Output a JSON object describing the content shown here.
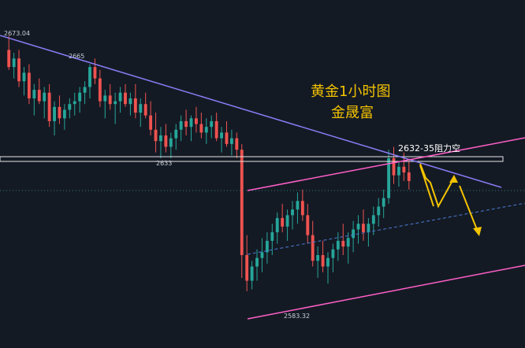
{
  "chart_data": {
    "type": "candlestick",
    "title": "黄金1小时图",
    "subtitle": "金晟富",
    "colors": {
      "background": "#141a24",
      "up": "#26a69a",
      "down": "#ef5350",
      "downtrend_line": "#8b7cf6",
      "channel": "#ff5fc8",
      "resistance_box": "#e6e6e6",
      "projection": "#f5c400",
      "grid_dots": "#2f7f7a"
    },
    "price_labels": {
      "high_start": "2673.04",
      "swing_high": "2665",
      "support_level": "2633",
      "low": "2583.32"
    },
    "resistance_zone": {
      "label": "2632-35阻力空",
      "from": 2632,
      "to": 2635
    },
    "candles_ohlc": [
      [
        2668,
        2673.0,
        2661,
        2662
      ],
      [
        2662,
        2667,
        2658,
        2665
      ],
      [
        2665,
        2668,
        2655,
        2657
      ],
      [
        2657,
        2662,
        2652,
        2660
      ],
      [
        2660,
        2663,
        2649,
        2651
      ],
      [
        2651,
        2656,
        2645,
        2654
      ],
      [
        2654,
        2658,
        2649,
        2650
      ],
      [
        2650,
        2655,
        2644,
        2653
      ],
      [
        2653,
        2656,
        2641,
        2643
      ],
      [
        2643,
        2650,
        2638,
        2648
      ],
      [
        2648,
        2652,
        2642,
        2644
      ],
      [
        2644,
        2649,
        2640,
        2647
      ],
      [
        2647,
        2651,
        2644,
        2649
      ],
      [
        2649,
        2653,
        2645,
        2650
      ],
      [
        2650,
        2655,
        2646,
        2653
      ],
      [
        2653,
        2657,
        2649,
        2655
      ],
      [
        2655,
        2663,
        2651,
        2662
      ],
      [
        2662,
        2665,
        2656,
        2658
      ],
      [
        2658,
        2661,
        2648,
        2650
      ],
      [
        2650,
        2654,
        2644,
        2652
      ],
      [
        2652,
        2656,
        2647,
        2649
      ],
      [
        2649,
        2653,
        2642,
        2650
      ],
      [
        2650,
        2655,
        2646,
        2653
      ],
      [
        2653,
        2656,
        2648,
        2649
      ],
      [
        2649,
        2653,
        2645,
        2651
      ],
      [
        2651,
        2656,
        2644,
        2646
      ],
      [
        2646,
        2651,
        2641,
        2649
      ],
      [
        2649,
        2653,
        2644,
        2645
      ],
      [
        2645,
        2650,
        2638,
        2640
      ],
      [
        2640,
        2646,
        2632,
        2636
      ],
      [
        2636,
        2641,
        2630,
        2638
      ],
      [
        2638,
        2642,
        2632,
        2634
      ],
      [
        2634,
        2639,
        2630,
        2637
      ],
      [
        2637,
        2642,
        2633,
        2640
      ],
      [
        2640,
        2645,
        2636,
        2643
      ],
      [
        2643,
        2647,
        2638,
        2641
      ],
      [
        2641,
        2645,
        2636,
        2644
      ],
      [
        2644,
        2648,
        2639,
        2642
      ],
      [
        2642,
        2646,
        2637,
        2639
      ],
      [
        2639,
        2644,
        2635,
        2641
      ],
      [
        2641,
        2645,
        2637,
        2643
      ],
      [
        2643,
        2646,
        2636,
        2637
      ],
      [
        2637,
        2641,
        2632,
        2639
      ],
      [
        2639,
        2643,
        2634,
        2635
      ],
      [
        2635,
        2640,
        2631,
        2637
      ],
      [
        2637,
        2639,
        2630,
        2633
      ],
      [
        2633,
        2635,
        2588,
        2596
      ],
      [
        2596,
        2603,
        2583.3,
        2587
      ],
      [
        2587,
        2594,
        2584,
        2592
      ],
      [
        2592,
        2598,
        2587,
        2595
      ],
      [
        2595,
        2602,
        2590,
        2597
      ],
      [
        2597,
        2604,
        2593,
        2601
      ],
      [
        2601,
        2607,
        2596,
        2604
      ],
      [
        2604,
        2611,
        2600,
        2609
      ],
      [
        2609,
        2614,
        2604,
        2606
      ],
      [
        2606,
        2612,
        2601,
        2610
      ],
      [
        2610,
        2615,
        2605,
        2612
      ],
      [
        2612,
        2618,
        2607,
        2615
      ],
      [
        2615,
        2619,
        2608,
        2610
      ],
      [
        2610,
        2614,
        2600,
        2603
      ],
      [
        2603,
        2608,
        2592,
        2594
      ],
      [
        2594,
        2599,
        2588,
        2596
      ],
      [
        2596,
        2601,
        2590,
        2592
      ],
      [
        2592,
        2597,
        2586,
        2595
      ],
      [
        2595,
        2600,
        2590,
        2598
      ],
      [
        2598,
        2604,
        2594,
        2601
      ],
      [
        2601,
        2607,
        2596,
        2599
      ],
      [
        2599,
        2604,
        2593,
        2602
      ],
      [
        2602,
        2608,
        2597,
        2605
      ],
      [
        2605,
        2610,
        2600,
        2607
      ],
      [
        2607,
        2612,
        2601,
        2604
      ],
      [
        2604,
        2609,
        2599,
        2607
      ],
      [
        2607,
        2613,
        2603,
        2610
      ],
      [
        2610,
        2616,
        2606,
        2613
      ],
      [
        2613,
        2619,
        2609,
        2616
      ],
      [
        2616,
        2633,
        2614,
        2630
      ],
      [
        2630,
        2634,
        2621,
        2624
      ],
      [
        2624,
        2629,
        2620,
        2627
      ],
      [
        2627,
        2632,
        2622,
        2625
      ],
      [
        2625,
        2629,
        2619,
        2622
      ]
    ],
    "x_range": [
      0,
      80
    ],
    "y_range": [
      2575,
      2680
    ]
  }
}
